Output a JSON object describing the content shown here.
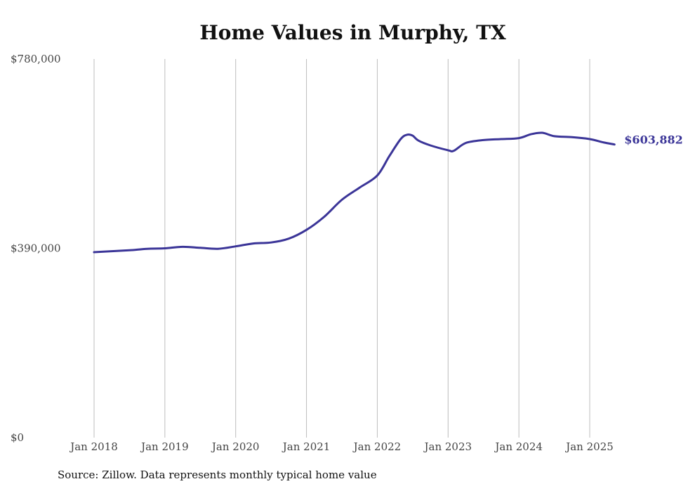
{
  "chart_data": {
    "type": "line",
    "title": "Home Values in Murphy, TX",
    "xlabel": "",
    "ylabel": "",
    "ylim": [
      0,
      780000
    ],
    "yticks": [
      {
        "value": 0,
        "label": "$0"
      },
      {
        "value": 390000,
        "label": "$390,000"
      },
      {
        "value": 780000,
        "label": "$780,000"
      }
    ],
    "xlim": [
      2018.0,
      2025.4
    ],
    "xticks": [
      {
        "value": 2018,
        "label": "Jan 2018"
      },
      {
        "value": 2019,
        "label": "Jan 2019"
      },
      {
        "value": 2020,
        "label": "Jan 2020"
      },
      {
        "value": 2021,
        "label": "Jan 2021"
      },
      {
        "value": 2022,
        "label": "Jan 2022"
      },
      {
        "value": 2023,
        "label": "Jan 2023"
      },
      {
        "value": 2024,
        "label": "Jan 2024"
      },
      {
        "value": 2025,
        "label": "Jan 2025"
      }
    ],
    "grid": "vertical",
    "color": "#3b3598",
    "end_label": "$603,882",
    "series": [
      {
        "x": [
          2018.0,
          2018.25,
          2018.5,
          2018.75,
          2019.0,
          2019.25,
          2019.5,
          2019.75,
          2020.0,
          2020.25,
          2020.5,
          2020.75,
          2021.0,
          2021.25,
          2021.5,
          2021.75,
          2022.0,
          2022.17,
          2022.33,
          2022.42,
          2022.5,
          2022.58,
          2022.75,
          2023.0,
          2023.08,
          2023.25,
          2023.5,
          2023.75,
          2024.0,
          2024.17,
          2024.33,
          2024.5,
          2024.75,
          2025.0,
          2025.2,
          2025.35
        ],
        "y": [
          382000,
          384000,
          386000,
          389000,
          390000,
          393000,
          391000,
          389000,
          394000,
          400000,
          402000,
          410000,
          428000,
          455000,
          490000,
          515000,
          540000,
          580000,
          615000,
          624000,
          622000,
          612000,
          602000,
          592000,
          591000,
          607000,
          613000,
          615000,
          617000,
          625000,
          628000,
          621000,
          619000,
          615000,
          608000,
          603882
        ]
      }
    ]
  },
  "source_note": "Source: Zillow. Data represents monthly typical home value"
}
